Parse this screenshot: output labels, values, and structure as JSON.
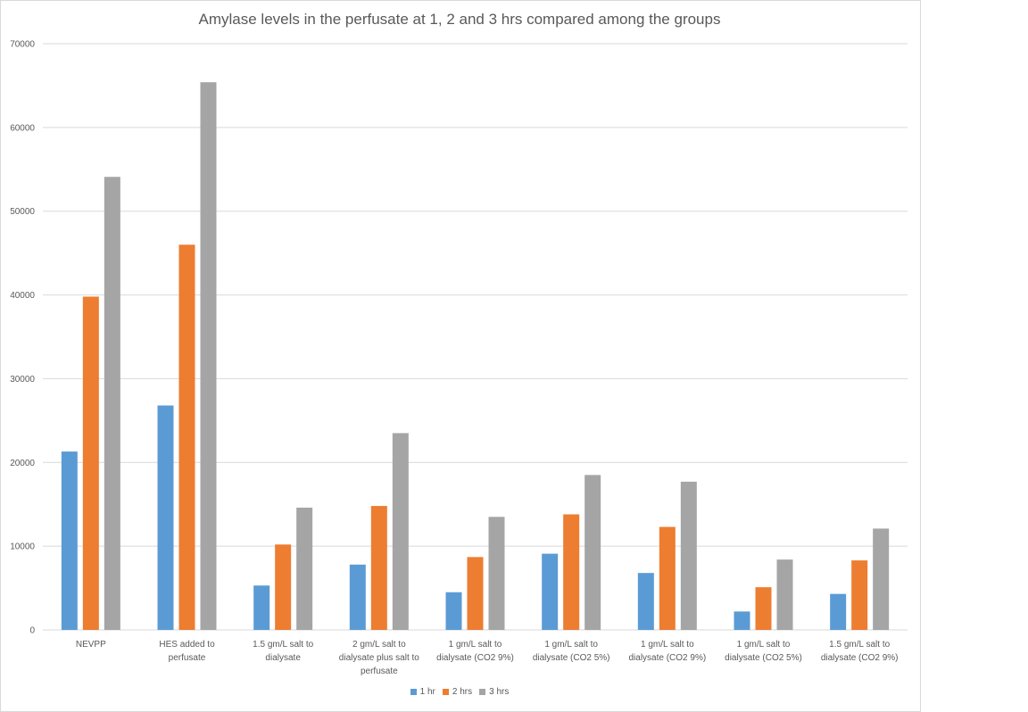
{
  "chart_data": {
    "type": "bar",
    "title": "Amylase levels in the perfusate at 1, 2 and 3 hrs compared among the groups",
    "xlabel": "",
    "ylabel": "",
    "ylim": [
      0,
      70000
    ],
    "yticks": [
      0,
      10000,
      20000,
      30000,
      40000,
      50000,
      60000,
      70000
    ],
    "ytick_labels": [
      "0",
      "10000",
      "20000",
      "30000",
      "40000",
      "50000",
      "60000",
      "70000"
    ],
    "grid": true,
    "legend_position": "bottom",
    "categories": [
      [
        "NEVPP"
      ],
      [
        "HES added to",
        "perfusate"
      ],
      [
        "1.5 gm/L salt to",
        "dialysate"
      ],
      [
        "2 gm/L salt to",
        "dialysate plus salt to",
        "perfusate"
      ],
      [
        "1 gm/L salt to",
        "dialysate (CO2 9%)"
      ],
      [
        "1 gm/L salt to",
        "dialysate (CO2 5%)"
      ],
      [
        "1 gm/L salt to",
        "dialysate (CO2 9%)"
      ],
      [
        "1 gm/L salt to",
        "dialysate (CO2 5%)"
      ],
      [
        "1.5 gm/L salt to",
        "dialysate (CO2 9%)"
      ]
    ],
    "series": [
      {
        "name": "1 hr",
        "color": "#5b9bd5",
        "values": [
          21300,
          26800,
          5300,
          7800,
          4500,
          9100,
          6800,
          2200,
          4300
        ]
      },
      {
        "name": "2 hrs",
        "color": "#ed7d31",
        "values": [
          39800,
          46000,
          10200,
          14800,
          8700,
          13800,
          12300,
          5100,
          8300
        ]
      },
      {
        "name": "3 hrs",
        "color": "#a5a5a5",
        "values": [
          54100,
          65400,
          14600,
          23500,
          13500,
          18500,
          17700,
          8400,
          12100
        ]
      }
    ]
  }
}
